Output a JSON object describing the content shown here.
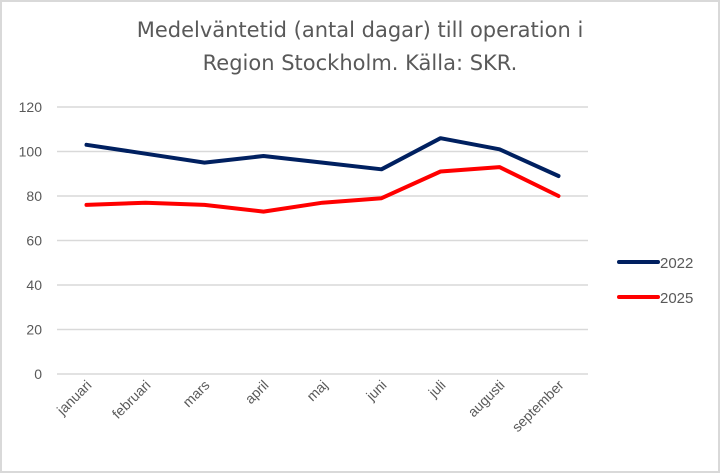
{
  "chart_data": {
    "type": "line",
    "title": "Medelväntetid (antal dagar) till operation i Region Stockholm. Källa: SKR.",
    "title_lines": [
      "Medelväntetid (antal dagar) till operation i",
      "Region Stockholm. Källa: SKR."
    ],
    "xlabel": "",
    "ylabel": "",
    "categories": [
      "januari",
      "februari",
      "mars",
      "april",
      "maj",
      "juni",
      "juli",
      "augusti",
      "september"
    ],
    "ylim": [
      0,
      120
    ],
    "yticks": [
      0,
      20,
      40,
      60,
      80,
      100,
      120
    ],
    "grid": true,
    "legend_position": "right",
    "series": [
      {
        "name": "2022",
        "color": "#002060",
        "values": [
          103,
          99,
          95,
          98,
          95,
          92,
          106,
          101,
          89
        ]
      },
      {
        "name": "2025",
        "color": "#ff0000",
        "values": [
          76,
          77,
          76,
          73,
          77,
          79,
          91,
          93,
          80
        ]
      }
    ]
  }
}
